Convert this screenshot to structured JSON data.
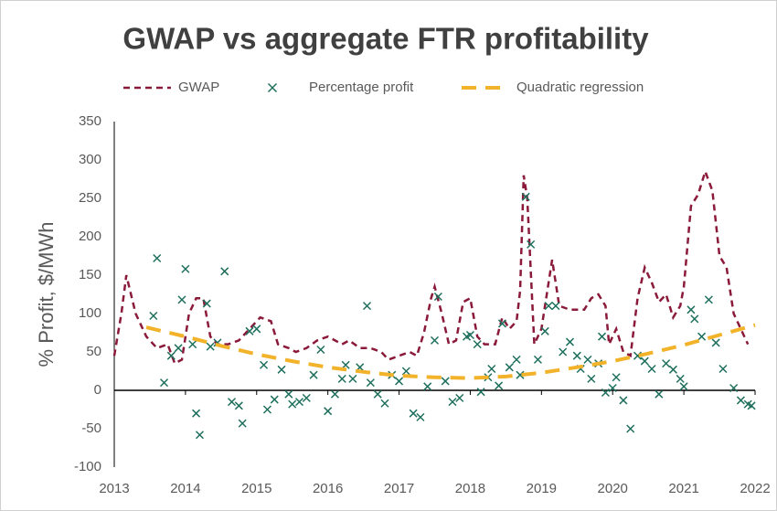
{
  "chart_data": {
    "type": "line",
    "title": "GWAP vs aggregate FTR profitability",
    "ylabel": "% Profit, $/MWh",
    "xlim": [
      2013,
      2022
    ],
    "xticks": [
      2013,
      2014,
      2015,
      2016,
      2017,
      2018,
      2019,
      2020,
      2021,
      2022
    ],
    "ylim": [
      -100,
      350
    ],
    "yticks": [
      -100,
      -50,
      0,
      50,
      100,
      150,
      200,
      250,
      300,
      350
    ],
    "grid": false,
    "legend": "top",
    "series": [
      {
        "name": "GWAP",
        "type": "line",
        "color": "#8b1a3a",
        "x": [
          2013.0,
          2013.1,
          2013.17,
          2013.3,
          2013.45,
          2013.6,
          2013.75,
          2013.85,
          2013.95,
          2014.05,
          2014.15,
          2014.25,
          2014.35,
          2014.45,
          2014.6,
          2014.75,
          2014.9,
          2015.05,
          2015.2,
          2015.3,
          2015.45,
          2015.55,
          2015.7,
          2015.85,
          2016.0,
          2016.1,
          2016.2,
          2016.3,
          2016.45,
          2016.6,
          2016.75,
          2016.85,
          2017.0,
          2017.15,
          2017.25,
          2017.35,
          2017.45,
          2017.5,
          2017.6,
          2017.7,
          2017.8,
          2017.9,
          2018.0,
          2018.1,
          2018.2,
          2018.35,
          2018.45,
          2018.55,
          2018.65,
          2018.7,
          2018.75,
          2018.8,
          2018.9,
          2019.0,
          2019.1,
          2019.15,
          2019.25,
          2019.4,
          2019.5,
          2019.6,
          2019.7,
          2019.8,
          2019.9,
          2019.95,
          2020.05,
          2020.15,
          2020.25,
          2020.35,
          2020.45,
          2020.55,
          2020.65,
          2020.75,
          2020.85,
          2020.95,
          2021.0,
          2021.1,
          2021.2,
          2021.3,
          2021.4,
          2021.5,
          2021.6,
          2021.7,
          2021.8,
          2021.9
        ],
        "values": [
          45,
          100,
          150,
          100,
          70,
          55,
          60,
          35,
          40,
          100,
          120,
          120,
          70,
          60,
          60,
          65,
          80,
          95,
          90,
          60,
          55,
          50,
          55,
          65,
          70,
          65,
          60,
          65,
          55,
          55,
          50,
          40,
          45,
          50,
          45,
          75,
          120,
          135,
          100,
          60,
          65,
          115,
          120,
          70,
          60,
          60,
          95,
          80,
          90,
          130,
          280,
          250,
          60,
          80,
          140,
          170,
          110,
          105,
          105,
          105,
          120,
          125,
          110,
          60,
          80,
          50,
          45,
          120,
          160,
          140,
          115,
          125,
          95,
          110,
          135,
          240,
          255,
          285,
          260,
          175,
          160,
          100,
          80,
          60
        ]
      },
      {
        "name": "Percentage profit",
        "type": "scatter",
        "color": "#1e6f5c",
        "x": [
          2013.55,
          2013.6,
          2013.7,
          2013.8,
          2013.9,
          2013.95,
          2014.0,
          2014.1,
          2014.15,
          2014.2,
          2014.3,
          2014.35,
          2014.45,
          2014.55,
          2014.65,
          2014.75,
          2014.8,
          2014.9,
          2015.0,
          2015.1,
          2015.15,
          2015.25,
          2015.35,
          2015.45,
          2015.5,
          2015.6,
          2015.7,
          2015.8,
          2015.9,
          2016.0,
          2016.1,
          2016.2,
          2016.25,
          2016.35,
          2016.45,
          2016.55,
          2016.6,
          2016.7,
          2016.8,
          2016.9,
          2017.0,
          2017.1,
          2017.2,
          2017.3,
          2017.4,
          2017.5,
          2017.55,
          2017.65,
          2017.75,
          2017.85,
          2017.95,
          2018.0,
          2018.1,
          2018.15,
          2018.25,
          2018.3,
          2018.4,
          2018.45,
          2018.55,
          2018.65,
          2018.7,
          2018.78,
          2018.85,
          2018.95,
          2019.05,
          2019.1,
          2019.2,
          2019.3,
          2019.4,
          2019.5,
          2019.55,
          2019.65,
          2019.7,
          2019.8,
          2019.85,
          2019.9,
          2020.0,
          2020.05,
          2020.15,
          2020.25,
          2020.35,
          2020.45,
          2020.55,
          2020.65,
          2020.75,
          2020.85,
          2020.95,
          2021.0,
          2021.1,
          2021.15,
          2021.25,
          2021.35,
          2021.45,
          2021.55,
          2021.7,
          2021.8,
          2021.9,
          2021.95
        ],
        "values": [
          97,
          172,
          10,
          45,
          55,
          118,
          158,
          60,
          -30,
          -58,
          113,
          57,
          62,
          155,
          -15,
          -20,
          -43,
          77,
          80,
          33,
          -25,
          -12,
          27,
          -5,
          -18,
          -15,
          -10,
          20,
          53,
          -27,
          -5,
          15,
          33,
          15,
          30,
          110,
          10,
          -5,
          -17,
          20,
          12,
          25,
          -30,
          -35,
          5,
          65,
          122,
          12,
          -15,
          -10,
          70,
          72,
          60,
          -2,
          17,
          28,
          6,
          87,
          30,
          40,
          20,
          252,
          190,
          40,
          77,
          110,
          110,
          50,
          63,
          45,
          28,
          40,
          15,
          35,
          70,
          -3,
          3,
          17,
          -13,
          -50,
          45,
          38,
          28,
          -5,
          35,
          27,
          15,
          5,
          105,
          93,
          70,
          118,
          62,
          28,
          3,
          -13,
          -18,
          -20
        ]
      },
      {
        "name": "Quadratic regression",
        "type": "line",
        "color": "#f2b32a",
        "x": [
          2013.45,
          2014,
          2014.5,
          2015,
          2015.5,
          2016,
          2016.5,
          2017,
          2017.5,
          2018,
          2018.5,
          2019,
          2019.5,
          2020,
          2020.5,
          2021,
          2021.5,
          2022
        ],
        "values": [
          82,
          70,
          58,
          47,
          38,
          30,
          24,
          19,
          17,
          16,
          18,
          23,
          30,
          38,
          48,
          59,
          72,
          85
        ]
      }
    ]
  }
}
